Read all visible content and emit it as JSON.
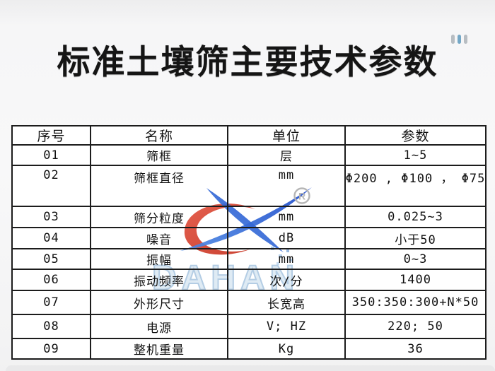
{
  "page": {
    "title": "标准土壤筛主要技术参数"
  },
  "decor": {
    "bar_colors": [
      "#b7bdc2",
      "#74a7c6",
      "#b7bdc2"
    ]
  },
  "watermark": {
    "brand": "DAHAN",
    "registered": "®",
    "colors": {
      "red_start": "#e2523f",
      "red_end": "#c5311f",
      "blue_start": "#4f8ae4",
      "blue_end": "#1b48c9",
      "text": "#b4cde4",
      "registered_gray": "#b5b5b5"
    }
  },
  "table": {
    "headers": [
      "序号",
      "名称",
      "单位",
      "参数"
    ],
    "rows": [
      [
        "01",
        "筛框",
        "层",
        "1~5"
      ],
      [
        "02",
        "筛框直径",
        "mm",
        "Φ200 , Φ100 ， Φ75"
      ],
      [
        "03",
        "筛分粒度",
        "mm",
        "0.025~3"
      ],
      [
        "04",
        "噪音",
        "dB",
        "小于50"
      ],
      [
        "05",
        "振幅",
        "mm",
        "0~3"
      ],
      [
        "06",
        "振动频率",
        "次/分",
        "1400"
      ],
      [
        "07",
        "外形尺寸",
        "长宽高",
        "350:350:300+N*50"
      ],
      [
        "08",
        "电源",
        "V; HZ",
        "220; 50"
      ],
      [
        "09",
        "整机重量",
        "Kg",
        "36"
      ]
    ]
  }
}
